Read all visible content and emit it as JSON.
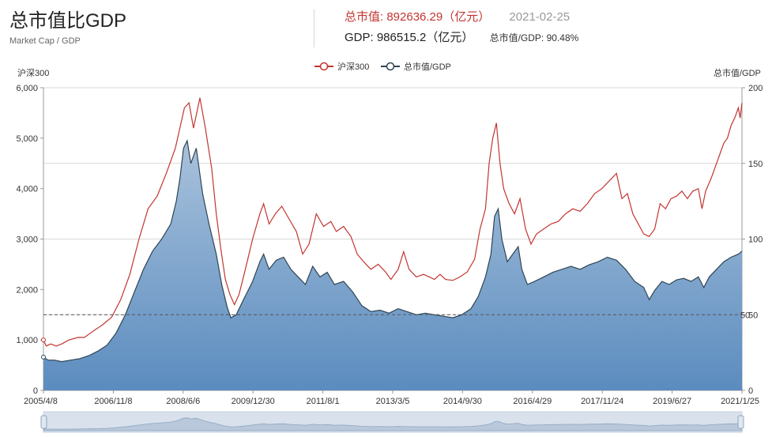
{
  "header": {
    "title": "总市值比GDP",
    "subtitle": "Market Cap / GDP",
    "market_cap_label": "总市值: 892636.29（亿元）",
    "date": "2021-02-25",
    "gdp_label": "GDP: 986515.2（亿元）",
    "ratio_label": "总市值/GDP: 90.48%"
  },
  "colors": {
    "hs300": "#c23531",
    "ratio": "#2f4554",
    "area_top": "#a9c2dc",
    "area_bottom": "#5b8cbf"
  },
  "chart_data": {
    "type": "line",
    "left_axis": {
      "label": "沪深300",
      "ylim": [
        0,
        6000
      ],
      "ticks": [
        "0",
        "1,000",
        "2,000",
        "3,000",
        "4,000",
        "5,000",
        "6,000"
      ]
    },
    "right_axis": {
      "label": "总市值/GDP",
      "ylim": [
        0,
        200
      ],
      "ticks": [
        "0",
        "50",
        "100",
        "150",
        "200"
      ]
    },
    "reference_line": {
      "value": 50,
      "label": "50"
    },
    "x_ticks": [
      "2005/4/8",
      "2006/11/8",
      "2008/6/6",
      "2009/12/30",
      "2011/8/1",
      "2013/3/5",
      "2014/9/30",
      "2016/4/29",
      "2017/11/24",
      "2019/6/27",
      "2021/1/25"
    ],
    "legend": [
      "沪深300",
      "总市值/GDP"
    ],
    "series": [
      {
        "name": "沪深300",
        "axis": "left",
        "points": [
          [
            0,
            1000
          ],
          [
            3,
            880
          ],
          [
            8,
            920
          ],
          [
            14,
            880
          ],
          [
            20,
            920
          ],
          [
            28,
            1000
          ],
          [
            38,
            1050
          ],
          [
            45,
            1050
          ],
          [
            55,
            1180
          ],
          [
            65,
            1300
          ],
          [
            75,
            1450
          ],
          [
            85,
            1800
          ],
          [
            95,
            2300
          ],
          [
            105,
            3000
          ],
          [
            115,
            3600
          ],
          [
            125,
            3850
          ],
          [
            135,
            4300
          ],
          [
            145,
            4800
          ],
          [
            155,
            5600
          ],
          [
            160,
            5700
          ],
          [
            165,
            5200
          ],
          [
            172,
            5800
          ],
          [
            178,
            5200
          ],
          [
            185,
            4400
          ],
          [
            190,
            3500
          ],
          [
            195,
            2800
          ],
          [
            200,
            2200
          ],
          [
            205,
            1900
          ],
          [
            210,
            1700
          ],
          [
            215,
            1900
          ],
          [
            222,
            2400
          ],
          [
            230,
            3000
          ],
          [
            238,
            3500
          ],
          [
            242,
            3700
          ],
          [
            248,
            3300
          ],
          [
            255,
            3500
          ],
          [
            262,
            3650
          ],
          [
            270,
            3400
          ],
          [
            278,
            3150
          ],
          [
            285,
            2700
          ],
          [
            292,
            2900
          ],
          [
            300,
            3500
          ],
          [
            308,
            3250
          ],
          [
            316,
            3350
          ],
          [
            322,
            3150
          ],
          [
            330,
            3250
          ],
          [
            338,
            3050
          ],
          [
            345,
            2700
          ],
          [
            352,
            2550
          ],
          [
            360,
            2400
          ],
          [
            368,
            2500
          ],
          [
            376,
            2350
          ],
          [
            382,
            2200
          ],
          [
            390,
            2400
          ],
          [
            396,
            2750
          ],
          [
            402,
            2400
          ],
          [
            410,
            2250
          ],
          [
            418,
            2300
          ],
          [
            424,
            2250
          ],
          [
            430,
            2200
          ],
          [
            436,
            2300
          ],
          [
            442,
            2200
          ],
          [
            450,
            2180
          ],
          [
            458,
            2250
          ],
          [
            466,
            2350
          ],
          [
            474,
            2600
          ],
          [
            480,
            3200
          ],
          [
            486,
            3600
          ],
          [
            490,
            4500
          ],
          [
            494,
            5000
          ],
          [
            498,
            5300
          ],
          [
            502,
            4500
          ],
          [
            506,
            4000
          ],
          [
            512,
            3700
          ],
          [
            518,
            3500
          ],
          [
            524,
            3800
          ],
          [
            530,
            3200
          ],
          [
            536,
            2900
          ],
          [
            542,
            3100
          ],
          [
            550,
            3200
          ],
          [
            558,
            3300
          ],
          [
            566,
            3350
          ],
          [
            574,
            3500
          ],
          [
            582,
            3600
          ],
          [
            590,
            3550
          ],
          [
            598,
            3700
          ],
          [
            606,
            3900
          ],
          [
            614,
            4000
          ],
          [
            622,
            4150
          ],
          [
            630,
            4300
          ],
          [
            636,
            3800
          ],
          [
            642,
            3900
          ],
          [
            648,
            3500
          ],
          [
            654,
            3300
          ],
          [
            660,
            3100
          ],
          [
            666,
            3050
          ],
          [
            672,
            3200
          ],
          [
            678,
            3700
          ],
          [
            684,
            3600
          ],
          [
            690,
            3800
          ],
          [
            696,
            3850
          ],
          [
            702,
            3950
          ],
          [
            708,
            3800
          ],
          [
            714,
            3950
          ],
          [
            720,
            4000
          ],
          [
            724,
            3600
          ],
          [
            728,
            3950
          ],
          [
            734,
            4200
          ],
          [
            740,
            4500
          ],
          [
            744,
            4700
          ],
          [
            748,
            4900
          ],
          [
            752,
            5000
          ],
          [
            756,
            5250
          ],
          [
            760,
            5400
          ],
          [
            764,
            5600
          ],
          [
            766,
            5400
          ],
          [
            768,
            5700
          ]
        ]
      },
      {
        "name": "总市值/GDP",
        "axis": "right",
        "points": [
          [
            0,
            22
          ],
          [
            5,
            20
          ],
          [
            12,
            20
          ],
          [
            20,
            19
          ],
          [
            30,
            20
          ],
          [
            40,
            21
          ],
          [
            50,
            23
          ],
          [
            60,
            26
          ],
          [
            70,
            30
          ],
          [
            80,
            38
          ],
          [
            90,
            50
          ],
          [
            100,
            65
          ],
          [
            110,
            80
          ],
          [
            120,
            92
          ],
          [
            130,
            100
          ],
          [
            140,
            110
          ],
          [
            146,
            125
          ],
          [
            150,
            140
          ],
          [
            154,
            160
          ],
          [
            158,
            165
          ],
          [
            162,
            150
          ],
          [
            168,
            160
          ],
          [
            175,
            130
          ],
          [
            182,
            110
          ],
          [
            190,
            90
          ],
          [
            196,
            70
          ],
          [
            202,
            55
          ],
          [
            206,
            48
          ],
          [
            212,
            50
          ],
          [
            220,
            60
          ],
          [
            230,
            72
          ],
          [
            238,
            85
          ],
          [
            242,
            90
          ],
          [
            248,
            80
          ],
          [
            256,
            86
          ],
          [
            264,
            88
          ],
          [
            272,
            80
          ],
          [
            280,
            75
          ],
          [
            288,
            70
          ],
          [
            296,
            82
          ],
          [
            304,
            75
          ],
          [
            312,
            78
          ],
          [
            320,
            70
          ],
          [
            330,
            72
          ],
          [
            340,
            65
          ],
          [
            350,
            56
          ],
          [
            360,
            52
          ],
          [
            370,
            53
          ],
          [
            380,
            51
          ],
          [
            390,
            54
          ],
          [
            400,
            52
          ],
          [
            410,
            50
          ],
          [
            420,
            51
          ],
          [
            430,
            50
          ],
          [
            440,
            49
          ],
          [
            450,
            48
          ],
          [
            460,
            50
          ],
          [
            470,
            54
          ],
          [
            478,
            62
          ],
          [
            486,
            75
          ],
          [
            492,
            90
          ],
          [
            496,
            115
          ],
          [
            500,
            120
          ],
          [
            504,
            100
          ],
          [
            510,
            85
          ],
          [
            516,
            90
          ],
          [
            522,
            95
          ],
          [
            526,
            80
          ],
          [
            532,
            70
          ],
          [
            540,
            72
          ],
          [
            550,
            75
          ],
          [
            560,
            78
          ],
          [
            570,
            80
          ],
          [
            580,
            82
          ],
          [
            590,
            80
          ],
          [
            600,
            83
          ],
          [
            610,
            85
          ],
          [
            620,
            88
          ],
          [
            630,
            86
          ],
          [
            640,
            80
          ],
          [
            650,
            72
          ],
          [
            660,
            68
          ],
          [
            666,
            60
          ],
          [
            672,
            66
          ],
          [
            680,
            72
          ],
          [
            688,
            70
          ],
          [
            696,
            73
          ],
          [
            704,
            74
          ],
          [
            712,
            72
          ],
          [
            720,
            75
          ],
          [
            726,
            68
          ],
          [
            732,
            75
          ],
          [
            740,
            80
          ],
          [
            748,
            85
          ],
          [
            756,
            88
          ],
          [
            764,
            90
          ],
          [
            768,
            92
          ]
        ]
      }
    ]
  }
}
